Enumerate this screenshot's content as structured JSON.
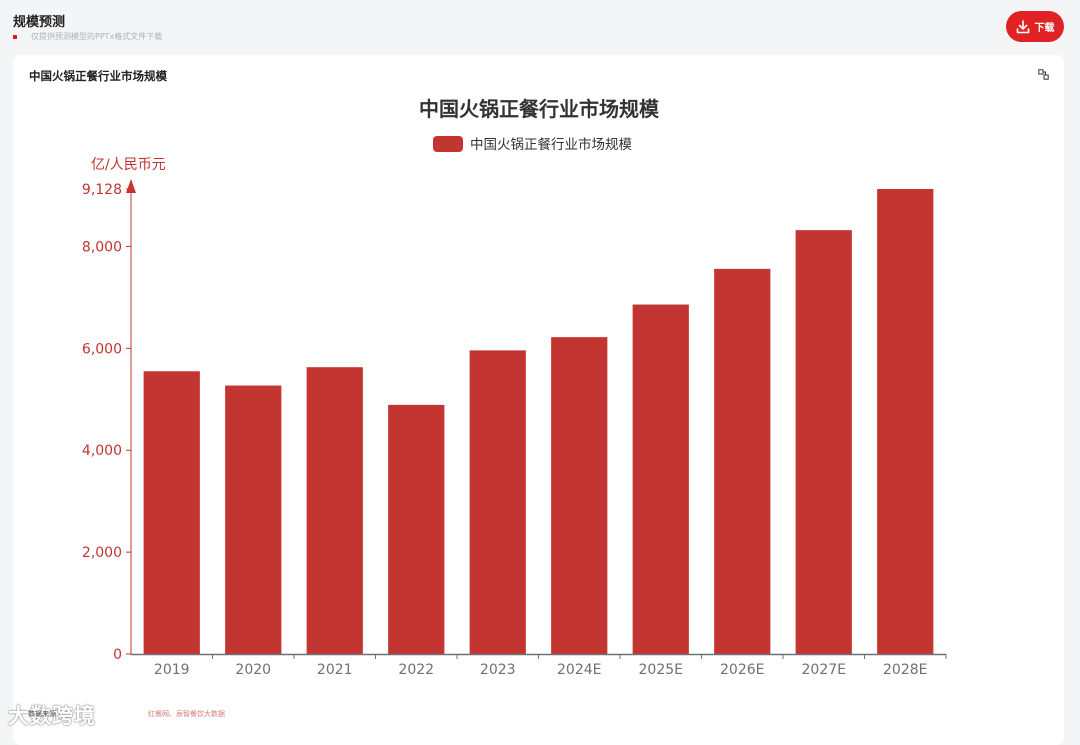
{
  "header": {
    "title": "规模预测",
    "subtitle": "仅提供预测模型的PPTx格式文件下载",
    "download_label": "下载"
  },
  "card": {
    "title": "中国火锅正餐行业市场规模"
  },
  "icons": {
    "download": "download-icon",
    "expand": "expand-icon"
  },
  "colors": {
    "accent": "#e12224",
    "bar": "#c23531",
    "axis": "#c23531"
  },
  "chart_data": {
    "type": "bar",
    "title": "中国火锅正餐行业市场规模",
    "legend": [
      "中国火锅正餐行业市场规模"
    ],
    "legend_position": "top-center",
    "ylabel": "亿/人民币元",
    "ylim": [
      0,
      9128
    ],
    "y_ticks": [
      0,
      2000,
      4000,
      6000,
      8000,
      9128
    ],
    "y_tick_labels": [
      "0",
      "2,000",
      "4,000",
      "6,000",
      "8,000",
      "9,128"
    ],
    "grid": false,
    "categories": [
      "2019",
      "2020",
      "2021",
      "2022",
      "2023",
      "2024E",
      "2025E",
      "2026E",
      "2027E",
      "2028E"
    ],
    "series": [
      {
        "name": "中国火锅正餐行业市场规模",
        "values": [
          5550,
          5270,
          5630,
          4890,
          5960,
          6220,
          6860,
          7560,
          8320,
          9128
        ]
      }
    ]
  },
  "footer": {
    "source_label": "数据来源：",
    "source_detail": "红餐网、辰智餐饮大数据",
    "watermark_text": "大数跨境"
  }
}
